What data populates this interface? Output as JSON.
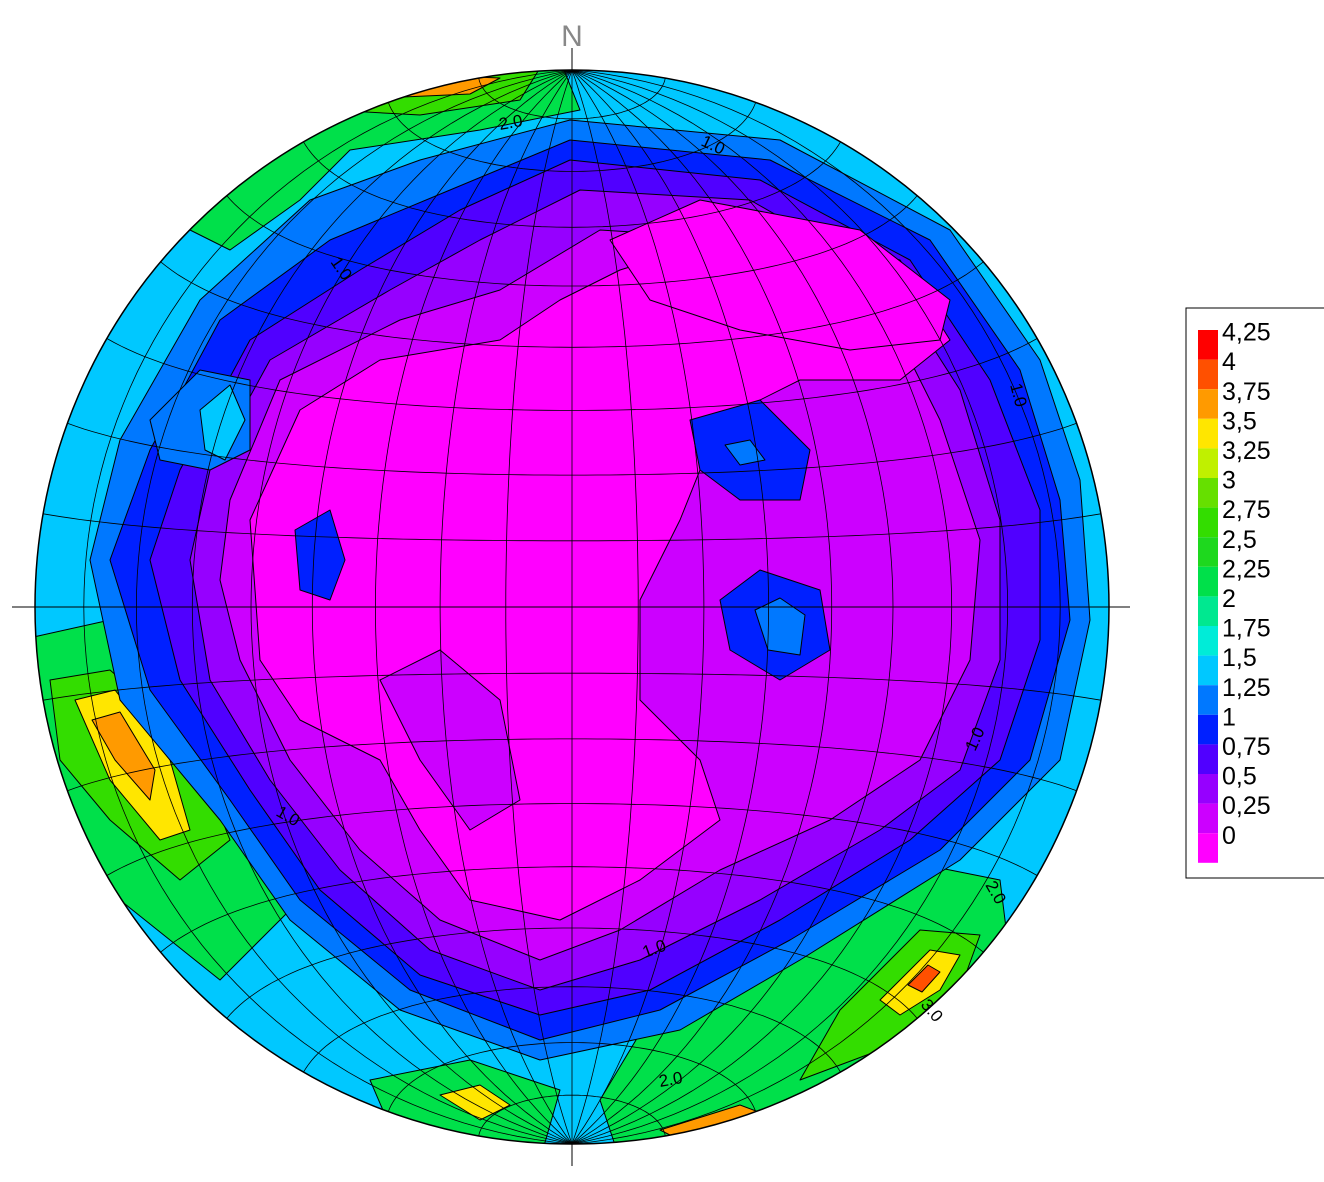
{
  "chart_data": {
    "type": "contour",
    "north_label": "N",
    "levels": [
      {
        "value": 4.25,
        "label": "4,25"
      },
      {
        "value": 4,
        "label": "4"
      },
      {
        "value": 3.75,
        "label": "3,75"
      },
      {
        "value": 3.5,
        "label": "3,5"
      },
      {
        "value": 3.25,
        "label": "3,25"
      },
      {
        "value": 3,
        "label": "3"
      },
      {
        "value": 2.75,
        "label": "2,75"
      },
      {
        "value": 2.5,
        "label": "2,5"
      },
      {
        "value": 2.25,
        "label": "2,25"
      },
      {
        "value": 2,
        "label": "2"
      },
      {
        "value": 1.75,
        "label": "1,75"
      },
      {
        "value": 1.5,
        "label": "1,5"
      },
      {
        "value": 1.25,
        "label": "1,25"
      },
      {
        "value": 1,
        "label": "1"
      },
      {
        "value": 0.75,
        "label": "0,75"
      },
      {
        "value": 0.5,
        "label": "0,5"
      },
      {
        "value": 0.25,
        "label": "0,25"
      },
      {
        "value": 0,
        "label": "0"
      }
    ],
    "colors": [
      "#ff0000",
      "#ff5000",
      "#ff9a00",
      "#ffe600",
      "#c0f000",
      "#66e000",
      "#33dd00",
      "#1ed81e",
      "#00e04a",
      "#00e890",
      "#00ecd8",
      "#00c8ff",
      "#0078ff",
      "#0020ff",
      "#5000ff",
      "#9600ff",
      "#cc00ff",
      "#ff00ff"
    ],
    "contour_labels": [
      "2.0",
      "1.0",
      "1.0",
      "1.0",
      "1.0",
      "1.0",
      "1.0",
      "2.0",
      "2.0",
      "3.0"
    ]
  }
}
